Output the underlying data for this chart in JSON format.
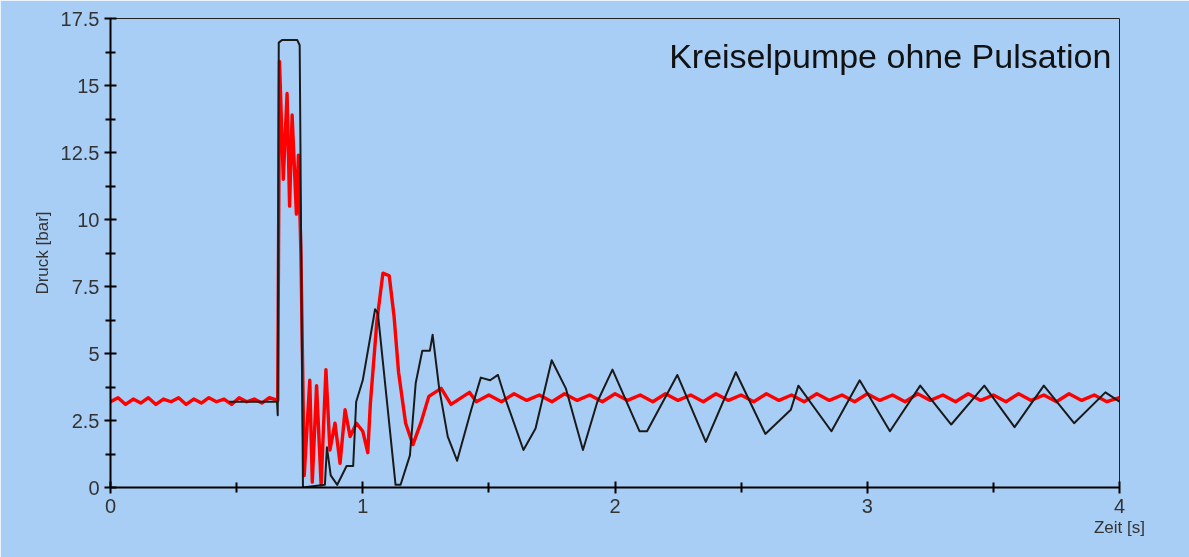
{
  "chart_data": {
    "type": "line",
    "title": "Kreiselpumpe ohne Pulsation",
    "xlabel": "Zeit [s]",
    "ylabel": "Druck [bar]",
    "xlim": [
      0,
      4
    ],
    "xticks": [
      0,
      1,
      2,
      3,
      4
    ],
    "ylim": [
      0,
      17.5
    ],
    "yticks": [
      0,
      2.5,
      5,
      7.5,
      10,
      12.5,
      15,
      17.5
    ],
    "grid": false,
    "marker": "none",
    "line_style": "solid",
    "series": [
      {
        "color": "#ff0000",
        "x": [
          0,
          0.03,
          0.06,
          0.09,
          0.12,
          0.15,
          0.18,
          0.21,
          0.24,
          0.27,
          0.3,
          0.33,
          0.36,
          0.39,
          0.42,
          0.45,
          0.48,
          0.51,
          0.54,
          0.57,
          0.6,
          0.63,
          0.663,
          0.67,
          0.685,
          0.7,
          0.71,
          0.72,
          0.737,
          0.745,
          0.755,
          0.768,
          0.79,
          0.8,
          0.817,
          0.835,
          0.854,
          0.87,
          0.89,
          0.91,
          0.93,
          0.95,
          0.975,
          1.0,
          1.02,
          1.03,
          1.056,
          1.08,
          1.105,
          1.124,
          1.142,
          1.17,
          1.199,
          1.23,
          1.262,
          1.311,
          1.35,
          1.423,
          1.45,
          1.5,
          1.55,
          1.6,
          1.65,
          1.7,
          1.75,
          1.8,
          1.85,
          1.9,
          1.95,
          2.0,
          2.05,
          2.1,
          2.15,
          2.2,
          2.25,
          2.3,
          2.35,
          2.4,
          2.45,
          2.5,
          2.55,
          2.6,
          2.65,
          2.7,
          2.75,
          2.8,
          2.85,
          2.9,
          2.95,
          3.0,
          3.05,
          3.1,
          3.15,
          3.2,
          3.25,
          3.3,
          3.35,
          3.4,
          3.45,
          3.5,
          3.55,
          3.6,
          3.65,
          3.7,
          3.75,
          3.8,
          3.85,
          3.9,
          3.95,
          4.0
        ],
        "values": [
          3.2,
          3.35,
          3.1,
          3.3,
          3.15,
          3.35,
          3.1,
          3.3,
          3.2,
          3.35,
          3.1,
          3.3,
          3.15,
          3.35,
          3.2,
          3.3,
          3.1,
          3.35,
          3.2,
          3.3,
          3.15,
          3.35,
          3.25,
          15.9,
          11.5,
          14.7,
          10.5,
          13.9,
          10.2,
          12.4,
          8.7,
          0.45,
          4.0,
          0.2,
          3.8,
          0.1,
          4.4,
          1.4,
          2.4,
          0.9,
          2.9,
          1.9,
          2.4,
          2.1,
          1.3,
          3.1,
          6.2,
          8.0,
          7.9,
          6.4,
          4.3,
          2.4,
          1.6,
          2.4,
          3.4,
          3.7,
          3.1,
          3.55,
          3.2,
          3.45,
          3.2,
          3.5,
          3.25,
          3.45,
          3.2,
          3.5,
          3.25,
          3.45,
          3.2,
          3.5,
          3.25,
          3.45,
          3.2,
          3.5,
          3.25,
          3.45,
          3.2,
          3.5,
          3.25,
          3.45,
          3.2,
          3.5,
          3.25,
          3.45,
          3.2,
          3.5,
          3.25,
          3.45,
          3.2,
          3.5,
          3.25,
          3.45,
          3.2,
          3.5,
          3.25,
          3.45,
          3.2,
          3.5,
          3.25,
          3.45,
          3.2,
          3.5,
          3.25,
          3.45,
          3.2,
          3.5,
          3.25,
          3.45,
          3.2,
          3.35
        ]
      },
      {
        "color": "#1a1a1a",
        "x": [
          0.47,
          0.66,
          0.663,
          0.667,
          0.68,
          0.74,
          0.75,
          0.763,
          0.85,
          0.858,
          0.873,
          0.899,
          0.936,
          0.962,
          0.974,
          1.0,
          1.049,
          1.06,
          1.13,
          1.15,
          1.187,
          1.21,
          1.236,
          1.266,
          1.277,
          1.303,
          1.337,
          1.374,
          1.43,
          1.468,
          1.505,
          1.536,
          1.566,
          1.637,
          1.685,
          1.749,
          1.805,
          1.873,
          1.93,
          1.99,
          2.097,
          2.127,
          2.247,
          2.36,
          2.479,
          2.596,
          2.697,
          2.727,
          2.858,
          2.97,
          3.09,
          3.21,
          3.333,
          3.464,
          3.584,
          3.7,
          3.82,
          3.944,
          4.0
        ],
        "values": [
          3.2,
          3.2,
          2.7,
          16.6,
          16.7,
          16.7,
          16.5,
          0,
          0.1,
          1.5,
          0.45,
          0.1,
          0.8,
          0.8,
          3.2,
          4.0,
          6.65,
          6.5,
          0.1,
          0.1,
          1.2,
          3.9,
          5.1,
          5.1,
          5.7,
          3.7,
          1.9,
          1.0,
          2.9,
          4.1,
          4.0,
          4.2,
          3.3,
          1.4,
          2.2,
          4.75,
          3.7,
          1.4,
          3.2,
          4.4,
          2.1,
          2.1,
          4.2,
          1.7,
          4.3,
          2.0,
          2.9,
          3.8,
          2.1,
          4.0,
          2.1,
          3.8,
          2.35,
          3.8,
          2.25,
          3.8,
          2.4,
          3.55,
          3.2
        ]
      }
    ]
  }
}
